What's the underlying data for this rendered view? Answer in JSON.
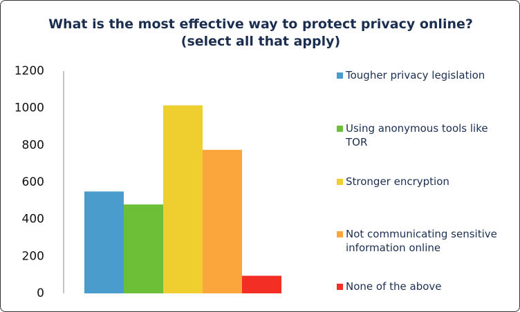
{
  "chart_data": {
    "type": "bar",
    "title": "What is the most effective way to protect privacy online? (select all that apply)",
    "categories": [
      null
    ],
    "series": [
      {
        "name": "Tougher privacy legislation",
        "color": "#4a9ccc",
        "values": [
          550
        ]
      },
      {
        "name": "Using anonymous tools like TOR",
        "color": "#6cbf37",
        "values": [
          480
        ]
      },
      {
        "name": "Stronger encryption",
        "color": "#efcf30",
        "values": [
          1015
        ]
      },
      {
        "name": "Not communicating sensitive information online",
        "color": "#fba63c",
        "values": [
          775
        ]
      },
      {
        "name": "None of the above",
        "color": "#f32e25",
        "values": [
          95
        ]
      }
    ],
    "ylim": [
      0,
      1200
    ],
    "yticks": [
      0,
      200,
      400,
      600,
      800,
      1000,
      1200
    ],
    "grid": false,
    "legend": "right"
  }
}
